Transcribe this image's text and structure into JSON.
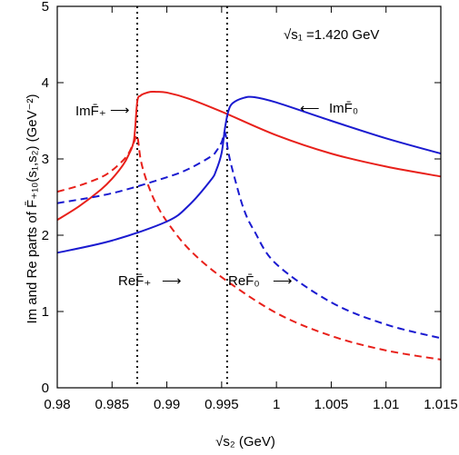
{
  "chart_data": {
    "type": "line",
    "xlabel": "√s₂ (GeV)",
    "ylabel": "Im and Re parts of F̄₊₁₀(s₁,s₂) (GeV⁻²)",
    "xlim": [
      0.98,
      1.015
    ],
    "ylim": [
      0,
      5
    ],
    "xticks": [
      "0.98",
      "0.985",
      "0.99",
      "0.995",
      "1",
      "1.005",
      "1.01",
      "1.015"
    ],
    "yticks": [
      "0",
      "1",
      "2",
      "3",
      "4",
      "5"
    ],
    "param_label": "√s₁ =1.420  GeV",
    "vlines": [
      0.9873,
      0.9955
    ],
    "series": [
      {
        "name": "ImF̄₊",
        "color": "#e8201a",
        "dash": "solid",
        "x": [
          0.98,
          0.982,
          0.984,
          0.985,
          0.986,
          0.9865,
          0.987,
          0.9873,
          0.9876,
          0.988,
          0.9885,
          0.989,
          0.99,
          0.992,
          0.995,
          1.0,
          1.005,
          1.01,
          1.015
        ],
        "y": [
          2.2,
          2.38,
          2.6,
          2.74,
          2.92,
          3.05,
          3.25,
          3.75,
          3.83,
          3.86,
          3.88,
          3.88,
          3.87,
          3.79,
          3.62,
          3.31,
          3.07,
          2.9,
          2.77
        ]
      },
      {
        "name": "ReF̄₊",
        "color": "#e8201a",
        "dash": "dashed",
        "x": [
          0.98,
          0.982,
          0.984,
          0.985,
          0.986,
          0.9865,
          0.987,
          0.9873,
          0.9876,
          0.988,
          0.9885,
          0.989,
          0.99,
          0.992,
          0.995,
          1.0,
          1.005,
          1.01,
          1.015
        ],
        "y": [
          2.57,
          2.65,
          2.76,
          2.85,
          2.98,
          3.07,
          3.22,
          3.3,
          3.0,
          2.78,
          2.58,
          2.42,
          2.18,
          1.82,
          1.45,
          0.98,
          0.68,
          0.49,
          0.37
        ]
      },
      {
        "name": "ImF̄₀",
        "color": "#1a1ad0",
        "dash": "solid",
        "x": [
          0.98,
          0.985,
          0.99,
          0.992,
          0.994,
          0.9945,
          0.995,
          0.9953,
          0.9956,
          0.996,
          0.997,
          0.998,
          1.0,
          1.005,
          1.01,
          1.015
        ],
        "y": [
          1.77,
          1.93,
          2.18,
          2.39,
          2.72,
          2.85,
          3.08,
          3.4,
          3.62,
          3.73,
          3.8,
          3.81,
          3.74,
          3.5,
          3.27,
          3.07
        ]
      },
      {
        "name": "ReF̄₀",
        "color": "#1a1ad0",
        "dash": "dashed",
        "x": [
          0.98,
          0.985,
          0.99,
          0.992,
          0.994,
          0.9945,
          0.995,
          0.9953,
          0.9956,
          0.996,
          0.997,
          0.998,
          1.0,
          1.005,
          1.01,
          1.015
        ],
        "y": [
          2.42,
          2.55,
          2.76,
          2.87,
          3.03,
          3.1,
          3.22,
          3.35,
          3.1,
          2.85,
          2.35,
          2.05,
          1.62,
          1.12,
          0.83,
          0.65
        ]
      }
    ],
    "annotations": {
      "im_plus": "ImF̄₊",
      "im_zero": "ImF̄₀",
      "re_plus": "ReF̄₊",
      "re_zero": "ReF̄₀",
      "arrow_right": "⟶",
      "arrow_left": "⟵"
    }
  }
}
